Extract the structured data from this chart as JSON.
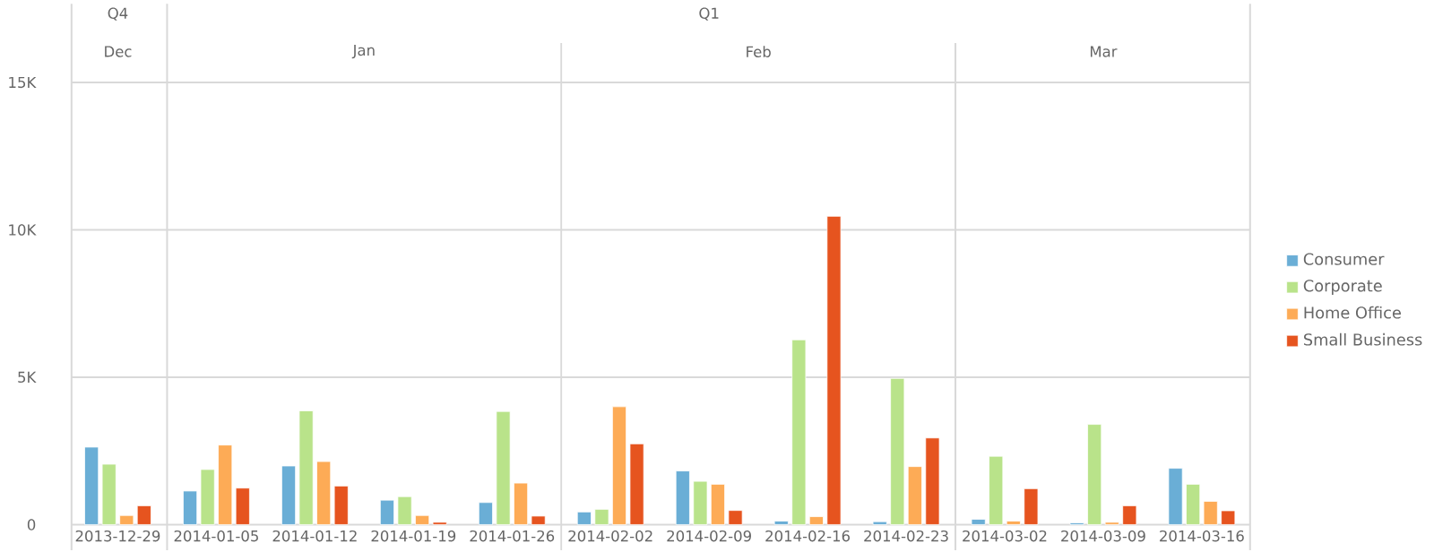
{
  "chart_data": {
    "type": "bar",
    "categories": [
      "2013-12-29",
      "2014-01-05",
      "2014-01-12",
      "2014-01-19",
      "2014-01-26",
      "2014-02-02",
      "2014-02-09",
      "2014-02-16",
      "2014-02-23",
      "2014-03-02",
      "2014-03-09",
      "2014-03-16"
    ],
    "series": [
      {
        "name": "Consumer",
        "color": "#6aaed6",
        "values": [
          2630,
          1140,
          1990,
          830,
          750,
          430,
          1820,
          120,
          100,
          180,
          60,
          1910
        ]
      },
      {
        "name": "Corporate",
        "color": "#b9e38a",
        "values": [
          2050,
          1870,
          3860,
          950,
          3840,
          520,
          1470,
          6270,
          4960,
          2320,
          3400,
          1370
        ]
      },
      {
        "name": "Home Office",
        "color": "#fdab56",
        "values": [
          310,
          2700,
          2140,
          310,
          1410,
          4000,
          1370,
          270,
          1970,
          120,
          80,
          790
        ]
      },
      {
        "name": "Small Business",
        "color": "#e6541f",
        "values": [
          640,
          1240,
          1310,
          80,
          290,
          2740,
          480,
          10460,
          2940,
          1220,
          640,
          470
        ]
      }
    ],
    "annotations": [
      "Q4",
      "Q1",
      "Dec",
      "Jan",
      "Feb",
      "Mar"
    ],
    "ylim": [
      0,
      17670
    ],
    "yticks": [
      0,
      {
        "value": 5000,
        "label": "5K"
      },
      {
        "value": 10000,
        "label": "10K"
      },
      {
        "value": 15000,
        "label": "15K"
      }
    ],
    "grid": "y",
    "legend": "right"
  }
}
